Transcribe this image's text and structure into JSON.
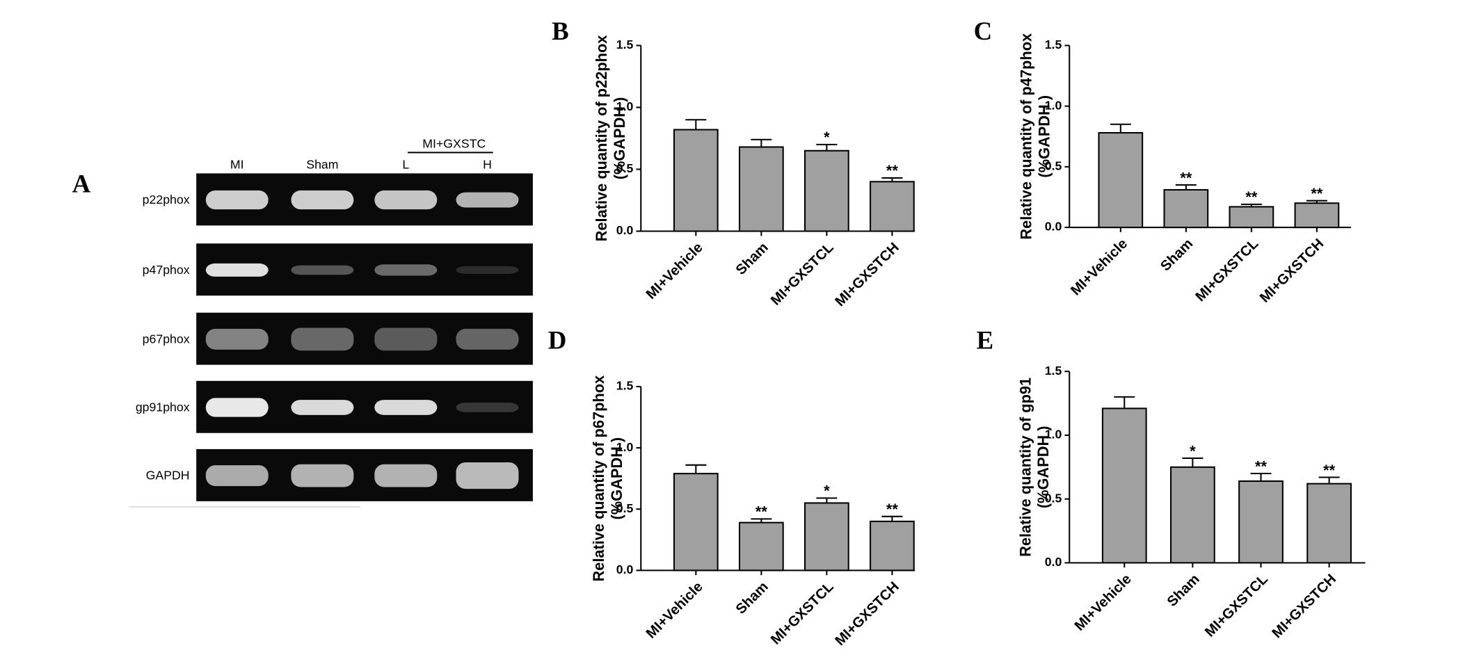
{
  "panel_a": {
    "label": "A",
    "group_label": "MI+GXSTC",
    "lanes": [
      "MI",
      "Sham",
      "L",
      "H"
    ],
    "rows": [
      "p22phox",
      "p47phox",
      "p67phox",
      "gp91phox",
      "GAPDH"
    ]
  },
  "chart_data": [
    {
      "type": "bar",
      "label": "B",
      "ylabel": [
        "Relative quantity of p22phox",
        "(%GAPDH )"
      ],
      "color": "#a0a0a0",
      "categories": [
        "MI+Vehicle",
        "Sham",
        "MI+GXSTCL",
        "MI+GXSTCH"
      ],
      "values": [
        0.82,
        0.68,
        0.65,
        0.4
      ],
      "errors": [
        0.08,
        0.06,
        0.05,
        0.03
      ],
      "annotations": [
        null,
        null,
        "*",
        "**"
      ],
      "ylim": [
        0,
        1.5
      ],
      "yticks": [
        {
          "value": 0,
          "label": "0.0"
        },
        0.5,
        {
          "value": 1,
          "label": "1.0"
        },
        1.5
      ]
    },
    {
      "type": "bar",
      "label": "C",
      "ylabel": [
        "Relative quantity of p47phox",
        "(%GAPDH )"
      ],
      "color": "#a0a0a0",
      "categories": [
        "MI+Vehicle",
        "Sham",
        "MI+GXSTCL",
        "MI+GXSTCH"
      ],
      "values": [
        0.78,
        0.31,
        0.17,
        0.2
      ],
      "errors": [
        0.07,
        0.04,
        0.02,
        0.02
      ],
      "annotations": [
        null,
        "**",
        "**",
        "**"
      ],
      "ylim": [
        0,
        1.5
      ],
      "yticks": [
        {
          "value": 0,
          "label": "0.0"
        },
        0.5,
        {
          "value": 1,
          "label": "1.0"
        },
        1.5
      ]
    },
    {
      "type": "bar",
      "label": "D",
      "ylabel": [
        "Relative quantity of p67phox",
        "(%GAPDH )"
      ],
      "color": "#a0a0a0",
      "categories": [
        "MI+Vehicle",
        "Sham",
        "MI+GXSTCL",
        "MI+GXSTCH"
      ],
      "values": [
        0.79,
        0.39,
        0.55,
        0.4
      ],
      "errors": [
        0.07,
        0.03,
        0.04,
        0.04
      ],
      "annotations": [
        null,
        "**",
        "*",
        "**"
      ],
      "ylim": [
        0,
        1.5
      ],
      "yticks": [
        {
          "value": 0,
          "label": "0.0"
        },
        0.5,
        {
          "value": 1,
          "label": "1.0"
        },
        1.5
      ]
    },
    {
      "type": "bar",
      "label": "E",
      "ylabel": [
        "Relative quantity of gp91",
        "(%GAPDH )"
      ],
      "color": "#a0a0a0",
      "categories": [
        "MI+Vehicle",
        "Sham",
        "MI+GXSTCL",
        "MI+GXSTCH"
      ],
      "values": [
        1.21,
        0.75,
        0.64,
        0.62
      ],
      "errors": [
        0.09,
        0.07,
        0.06,
        0.05
      ],
      "annotations": [
        null,
        "*",
        "**",
        "**"
      ],
      "ylim": [
        0,
        1.5
      ],
      "yticks": [
        {
          "value": 0,
          "label": "0.0"
        },
        0.5,
        {
          "value": 1,
          "label": "1.0"
        },
        1.5
      ]
    }
  ]
}
